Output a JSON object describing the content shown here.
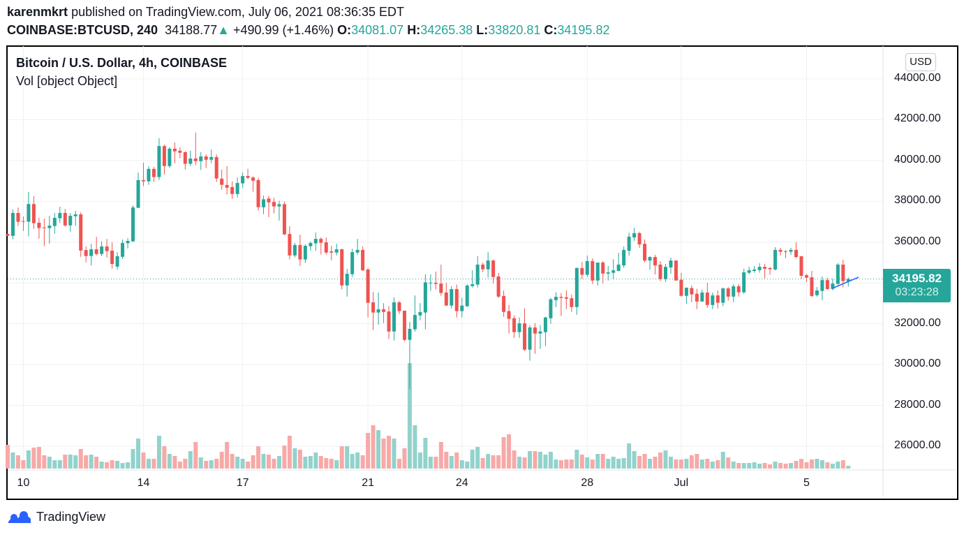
{
  "header": {
    "author": "karenmkrt",
    "published": "published on TradingView.com, July 06, 2021 08:36:35 EDT",
    "symbol": "COINBASE:BTCUSD, 240",
    "last": "34188.77",
    "change": "+490.99 (+1.46%)",
    "o_label": "O:",
    "o": "34081.07",
    "h_label": "H:",
    "h": "34265.38",
    "l_label": "L:",
    "l": "33820.81",
    "c_label": "C:",
    "c": "34195.82"
  },
  "legend": {
    "title": "Bitcoin / U.S. Dollar, 4h, COINBASE",
    "volume": "Vol [object Object]"
  },
  "currency_button": "USD",
  "price_badge": {
    "price": "34195.82",
    "countdown": "03:23:28"
  },
  "footer": {
    "brand": "TradingView"
  },
  "colors": {
    "up": "#26a69a",
    "down": "#ef5350",
    "up_volume": "#92d2cc",
    "down_volume": "#f7a9a7",
    "trendline": "#2962ff"
  },
  "chart_data": {
    "type": "candlestick",
    "title": "Bitcoin / U.S. Dollar, 4h, COINBASE",
    "interval": "4h",
    "ylim": [
      25000,
      45000
    ],
    "y_ticks": [
      "44000.00",
      "42000.00",
      "40000.00",
      "38000.00",
      "36000.00",
      "32000.00",
      "30000.00",
      "28000.00",
      "26000.00"
    ],
    "y_tick_values": [
      44000,
      42000,
      40000,
      38000,
      36000,
      32000,
      30000,
      28000,
      26000
    ],
    "x_ticks": [
      {
        "label": "10",
        "candle": 3
      },
      {
        "label": "14",
        "candle": 26
      },
      {
        "label": "17",
        "candle": 45
      },
      {
        "label": "21",
        "candle": 69
      },
      {
        "label": "24",
        "candle": 87
      },
      {
        "label": "28",
        "candle": 111
      },
      {
        "label": "Jul",
        "candle": 129
      },
      {
        "label": "5",
        "candle": 153
      }
    ],
    "grid": true,
    "ohlc_fields": [
      "open",
      "high",
      "low",
      "close"
    ],
    "ohlc": [
      [
        36400,
        36420,
        36300,
        36310
      ],
      [
        36310,
        37600,
        36140,
        37430
      ],
      [
        37430,
        37700,
        36790,
        37000
      ],
      [
        37030,
        37260,
        36550,
        37000
      ],
      [
        37000,
        38460,
        36280,
        37870
      ],
      [
        37870,
        38250,
        36650,
        36930
      ],
      [
        36950,
        37190,
        36170,
        36690
      ],
      [
        36720,
        37150,
        35800,
        36690
      ],
      [
        36690,
        37290,
        35930,
        36810
      ],
      [
        36790,
        37430,
        36410,
        37190
      ],
      [
        37170,
        37740,
        36940,
        37430
      ],
      [
        37430,
        37630,
        36760,
        36820
      ],
      [
        36820,
        37430,
        36520,
        37290
      ],
      [
        37270,
        37530,
        36790,
        37360
      ],
      [
        37360,
        37460,
        35280,
        35590
      ],
      [
        35610,
        35790,
        35010,
        35320
      ],
      [
        35320,
        35920,
        34860,
        35650
      ],
      [
        35650,
        36260,
        35350,
        35420
      ],
      [
        35420,
        36040,
        35320,
        35790
      ],
      [
        35790,
        36160,
        35250,
        35560
      ],
      [
        35580,
        35990,
        34700,
        34930
      ],
      [
        34800,
        35510,
        34650,
        35310
      ],
      [
        35280,
        36130,
        35180,
        35960
      ],
      [
        35950,
        36200,
        35690,
        36060
      ],
      [
        36040,
        37800,
        36000,
        37700
      ],
      [
        37680,
        39410,
        37680,
        39040
      ],
      [
        39040,
        39890,
        38740,
        38980
      ],
      [
        38980,
        39720,
        38810,
        39590
      ],
      [
        39590,
        39690,
        38950,
        39190
      ],
      [
        39190,
        41090,
        39050,
        40710
      ],
      [
        40710,
        40780,
        39320,
        39730
      ],
      [
        39730,
        40650,
        39630,
        40580
      ],
      [
        40580,
        40890,
        39870,
        40450
      ],
      [
        40480,
        40650,
        40110,
        40380
      ],
      [
        40410,
        40440,
        39560,
        39840
      ],
      [
        39840,
        40480,
        39730,
        40100
      ],
      [
        40100,
        41370,
        39770,
        39970
      ],
      [
        39970,
        40410,
        39530,
        40200
      ],
      [
        40200,
        40300,
        39630,
        40040
      ],
      [
        40040,
        40540,
        39870,
        40170
      ],
      [
        40170,
        40300,
        38950,
        39120
      ],
      [
        39110,
        39560,
        38570,
        38810
      ],
      [
        38800,
        39730,
        38330,
        38670
      ],
      [
        38700,
        38980,
        38120,
        38360
      ],
      [
        38360,
        39170,
        38190,
        38900
      ],
      [
        38880,
        39410,
        38670,
        39240
      ],
      [
        39240,
        39600,
        39080,
        39150
      ],
      [
        39170,
        39220,
        38470,
        39010
      ],
      [
        39040,
        39150,
        37540,
        37710
      ],
      [
        37710,
        38280,
        37370,
        38100
      ],
      [
        38140,
        38250,
        37230,
        37950
      ],
      [
        37970,
        38170,
        37410,
        37750
      ],
      [
        37750,
        38030,
        37060,
        37860
      ],
      [
        37860,
        37990,
        36340,
        36380
      ],
      [
        36400,
        36780,
        35150,
        35350
      ],
      [
        35350,
        35960,
        35250,
        35860
      ],
      [
        35860,
        36370,
        34840,
        35150
      ],
      [
        35150,
        35890,
        34980,
        35820
      ],
      [
        35800,
        36030,
        35580,
        35960
      ],
      [
        35940,
        36470,
        35580,
        36160
      ],
      [
        36160,
        36230,
        35390,
        35970
      ],
      [
        35990,
        36230,
        35390,
        35490
      ],
      [
        35550,
        35820,
        35110,
        35490
      ],
      [
        35490,
        35920,
        35350,
        35650
      ],
      [
        35650,
        35680,
        33680,
        33880
      ],
      [
        33880,
        34690,
        33330,
        34450
      ],
      [
        34430,
        35680,
        34290,
        35510
      ],
      [
        35490,
        36160,
        35390,
        35620
      ],
      [
        35620,
        35790,
        34590,
        34620
      ],
      [
        34660,
        34730,
        32310,
        33030
      ],
      [
        33050,
        33560,
        31690,
        32550
      ],
      [
        32550,
        33530,
        31960,
        32710
      ],
      [
        32710,
        33010,
        32030,
        32580
      ],
      [
        32600,
        32860,
        31250,
        31620
      ],
      [
        31620,
        33290,
        31180,
        33050
      ],
      [
        33050,
        33120,
        32480,
        32620
      ],
      [
        32640,
        32640,
        31140,
        31210
      ],
      [
        31210,
        32090,
        28800,
        31750
      ],
      [
        31730,
        33390,
        31620,
        32430
      ],
      [
        32410,
        33010,
        32170,
        32570
      ],
      [
        32550,
        34420,
        31730,
        34030
      ],
      [
        33990,
        34420,
        33610,
        34010
      ],
      [
        34010,
        34560,
        33680,
        33950
      ],
      [
        33970,
        34900,
        33370,
        33510
      ],
      [
        33530,
        34010,
        32890,
        32890
      ],
      [
        32890,
        33840,
        32750,
        33700
      ],
      [
        33700,
        33920,
        32310,
        32620
      ],
      [
        32620,
        33270,
        32310,
        32890
      ],
      [
        32860,
        33940,
        32820,
        33870
      ],
      [
        33850,
        34620,
        33780,
        33940
      ],
      [
        33920,
        35310,
        33780,
        34900
      ],
      [
        34900,
        35000,
        34530,
        34670
      ],
      [
        34670,
        35510,
        34260,
        35100
      ],
      [
        35100,
        35150,
        33980,
        34290
      ],
      [
        34320,
        34490,
        33270,
        33330
      ],
      [
        33360,
        33630,
        32340,
        32580
      ],
      [
        32620,
        32920,
        31520,
        32240
      ],
      [
        32270,
        32410,
        31310,
        31590
      ],
      [
        31590,
        32310,
        31310,
        32020
      ],
      [
        32020,
        32750,
        30660,
        30730
      ],
      [
        30730,
        31930,
        30190,
        31820
      ],
      [
        31820,
        32030,
        30530,
        31520
      ],
      [
        31520,
        31930,
        30770,
        31620
      ],
      [
        31590,
        32340,
        30900,
        32310
      ],
      [
        32270,
        33270,
        32000,
        33200
      ],
      [
        33160,
        33540,
        32820,
        33320
      ],
      [
        33320,
        33510,
        32380,
        33270
      ],
      [
        33300,
        33640,
        32720,
        33230
      ],
      [
        33250,
        33430,
        32580,
        32820
      ],
      [
        32820,
        34760,
        32440,
        34730
      ],
      [
        34730,
        35030,
        34190,
        34400
      ],
      [
        34400,
        35340,
        34290,
        35070
      ],
      [
        35070,
        35210,
        33950,
        34120
      ],
      [
        34120,
        35000,
        33880,
        35000
      ],
      [
        35000,
        35070,
        33980,
        34460
      ],
      [
        34460,
        34830,
        34120,
        34520
      ],
      [
        34500,
        35170,
        34190,
        34620
      ],
      [
        34590,
        35480,
        34570,
        34900
      ],
      [
        34860,
        35790,
        34740,
        35620
      ],
      [
        35580,
        36470,
        35340,
        36270
      ],
      [
        36230,
        36710,
        36060,
        36440
      ],
      [
        36440,
        36510,
        35720,
        35890
      ],
      [
        35920,
        36130,
        35000,
        35100
      ],
      [
        35100,
        35310,
        34660,
        35270
      ],
      [
        35270,
        35380,
        34420,
        34860
      ],
      [
        34900,
        35070,
        34090,
        34190
      ],
      [
        34190,
        34930,
        34050,
        34790
      ],
      [
        34760,
        35240,
        34460,
        35100
      ],
      [
        35100,
        35100,
        34120,
        34120
      ],
      [
        34160,
        34500,
        33330,
        33370
      ],
      [
        33370,
        33770,
        32990,
        33770
      ],
      [
        33750,
        33880,
        33060,
        33440
      ],
      [
        33470,
        33710,
        32720,
        33090
      ],
      [
        33090,
        33670,
        33090,
        33530
      ],
      [
        33530,
        34010,
        32790,
        32920
      ],
      [
        32920,
        33530,
        32720,
        33390
      ],
      [
        33390,
        33630,
        32750,
        33030
      ],
      [
        33030,
        33770,
        32860,
        33730
      ],
      [
        33730,
        33800,
        33130,
        33330
      ],
      [
        33330,
        33940,
        33060,
        33840
      ],
      [
        33840,
        33940,
        33330,
        33540
      ],
      [
        33540,
        34690,
        33470,
        34520
      ],
      [
        34500,
        34790,
        34430,
        34620
      ],
      [
        34590,
        34830,
        34500,
        34660
      ],
      [
        34630,
        34970,
        34500,
        34790
      ],
      [
        34790,
        34930,
        34220,
        34700
      ],
      [
        34730,
        34790,
        34400,
        34670
      ],
      [
        34660,
        35750,
        34620,
        35620
      ],
      [
        35620,
        35720,
        35340,
        35530
      ],
      [
        35550,
        35620,
        35210,
        35530
      ],
      [
        35530,
        35720,
        35380,
        35620
      ],
      [
        35620,
        35990,
        35210,
        35270
      ],
      [
        35310,
        35310,
        34190,
        34350
      ],
      [
        34380,
        34450,
        34050,
        34260
      ],
      [
        34280,
        34590,
        33320,
        33360
      ],
      [
        33400,
        33800,
        33330,
        33630
      ],
      [
        33610,
        34320,
        33160,
        34140
      ],
      [
        34140,
        34250,
        33670,
        33700
      ],
      [
        33710,
        34210,
        33640,
        33970
      ],
      [
        33950,
        34970,
        33920,
        34900
      ],
      [
        34900,
        35140,
        33780,
        34090
      ],
      [
        34081.07,
        34265.38,
        33820.81,
        34195.82
      ]
    ],
    "volume_relative": [
      34,
      23,
      19,
      12,
      26,
      30,
      31,
      19,
      17,
      12,
      12,
      20,
      20,
      19,
      28,
      19,
      20,
      17,
      10,
      9,
      12,
      11,
      8,
      9,
      28,
      43,
      23,
      14,
      14,
      47,
      32,
      21,
      18,
      10,
      14,
      25,
      38,
      16,
      11,
      12,
      14,
      24,
      38,
      21,
      17,
      14,
      10,
      19,
      32,
      21,
      20,
      14,
      18,
      33,
      47,
      29,
      27,
      17,
      18,
      23,
      18,
      15,
      14,
      12,
      32,
      32,
      21,
      23,
      19,
      51,
      62,
      55,
      43,
      47,
      43,
      14,
      29,
      151,
      62,
      23,
      44,
      17,
      17,
      38,
      24,
      18,
      23,
      12,
      10,
      27,
      31,
      15,
      21,
      19,
      19,
      45,
      49,
      26,
      17,
      16,
      25,
      25,
      24,
      20,
      24,
      13,
      12,
      13,
      13,
      27,
      20,
      16,
      13,
      21,
      21,
      14,
      17,
      14,
      15,
      36,
      25,
      18,
      21,
      14,
      17,
      23,
      26,
      17,
      13,
      13,
      14,
      19,
      21,
      13,
      14,
      10,
      12,
      24,
      16,
      10,
      8,
      8,
      8,
      9,
      7,
      8,
      6,
      10,
      8,
      7,
      8,
      11,
      14,
      9,
      13,
      14,
      12,
      9,
      7,
      10,
      12,
      4
    ],
    "last_price": 34195.82
  }
}
